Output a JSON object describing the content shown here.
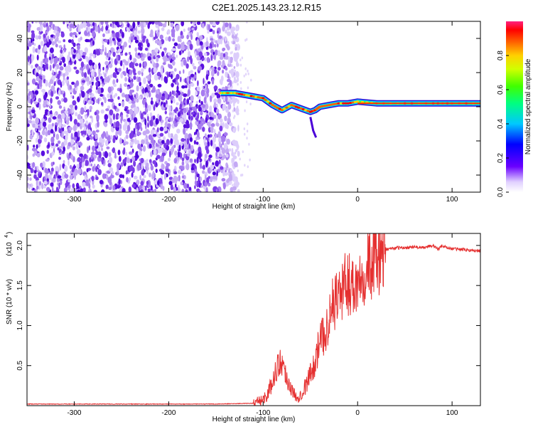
{
  "title": "C2E1.2025.143.23.12.R15",
  "colors": {
    "snr_line": "#e53030",
    "scatter_blue": "#5010d8",
    "scatter_light": "#c8b0f0",
    "frame": "#000000"
  },
  "chart_data": [
    {
      "type": "heatmap",
      "description_series": "spectrogram",
      "xlabel": "Height of straight line (km)",
      "ylabel": "Frequency (Hz)",
      "xlim": [
        -350,
        130
      ],
      "ylim": [
        -50,
        50
      ],
      "x_ticks": [
        -300,
        -200,
        -100,
        0,
        100
      ],
      "x_tick_labels": [
        "-300",
        "-200",
        "-100",
        "0",
        "100"
      ],
      "y_ticks": [
        -40,
        -20,
        0,
        20,
        40
      ],
      "y_tick_labels": [
        "-40",
        "-20",
        "0",
        "20",
        "40"
      ],
      "noise_region_x": [
        -350,
        -135
      ],
      "signal_ridge": {
        "x": [
          -145,
          -130,
          -120,
          -110,
          -100,
          -90,
          -80,
          -70,
          -60,
          -50,
          -45,
          -40,
          -30,
          -20,
          -10,
          0,
          20,
          50,
          80,
          100,
          130
        ],
        "y": [
          8,
          8,
          7,
          6,
          5,
          1,
          -2,
          1,
          -1,
          -3,
          -2,
          0,
          1,
          2,
          2,
          3,
          2,
          2,
          2,
          2,
          2
        ]
      },
      "colorbar": {
        "label": "Normalized spectral amplitude",
        "range": [
          0,
          1
        ],
        "ticks": [
          0.0,
          0.2,
          0.4,
          0.6,
          0.8
        ],
        "tick_labels": [
          "0.0",
          "0.2",
          "0.4",
          "0.6",
          "0.8"
        ]
      },
      "grid": false
    },
    {
      "type": "line",
      "xlabel": "Height of straight line (km)",
      "ylabel": "SNR (10 * v/v)",
      "scale_label": "(x10",
      "scale_exponent": "4",
      "scale_suffix": ")",
      "xlim": [
        -350,
        130
      ],
      "ylim": [
        0,
        2.15
      ],
      "x_ticks": [
        -300,
        -200,
        -100,
        0,
        100
      ],
      "x_tick_labels": [
        "-300",
        "-200",
        "-100",
        "0",
        "100"
      ],
      "y_ticks": [
        0.5,
        1.0,
        1.5,
        2.0
      ],
      "y_tick_labels": [
        "0.5",
        "1.0",
        "1.5",
        "2.0"
      ],
      "series": [
        {
          "x": [
            -350,
            -300,
            -250,
            -200,
            -150,
            -110,
            -100,
            -95,
            -90,
            -85,
            -80,
            -75,
            -70,
            -65,
            -60,
            -55,
            -50,
            -45,
            -40,
            -35,
            -30,
            -25,
            -20,
            -15,
            -10,
            -5,
            0,
            5,
            10,
            15,
            20,
            25,
            30,
            40,
            50,
            60,
            70,
            75,
            80,
            85,
            90,
            95,
            100,
            110,
            120,
            130
          ],
          "y": [
            0.02,
            0.02,
            0.02,
            0.02,
            0.02,
            0.03,
            0.08,
            0.15,
            0.3,
            0.5,
            0.55,
            0.35,
            0.2,
            0.1,
            0.15,
            0.25,
            0.4,
            0.55,
            0.8,
            0.9,
            1.1,
            1.3,
            1.4,
            1.45,
            1.55,
            1.5,
            1.55,
            1.7,
            1.75,
            1.8,
            1.85,
            1.9,
            1.95,
            1.97,
            1.97,
            1.98,
            1.97,
            1.99,
            2.0,
            1.95,
            2.0,
            1.97,
            1.96,
            1.95,
            1.94,
            1.93
          ]
        }
      ],
      "grid": false
    }
  ]
}
